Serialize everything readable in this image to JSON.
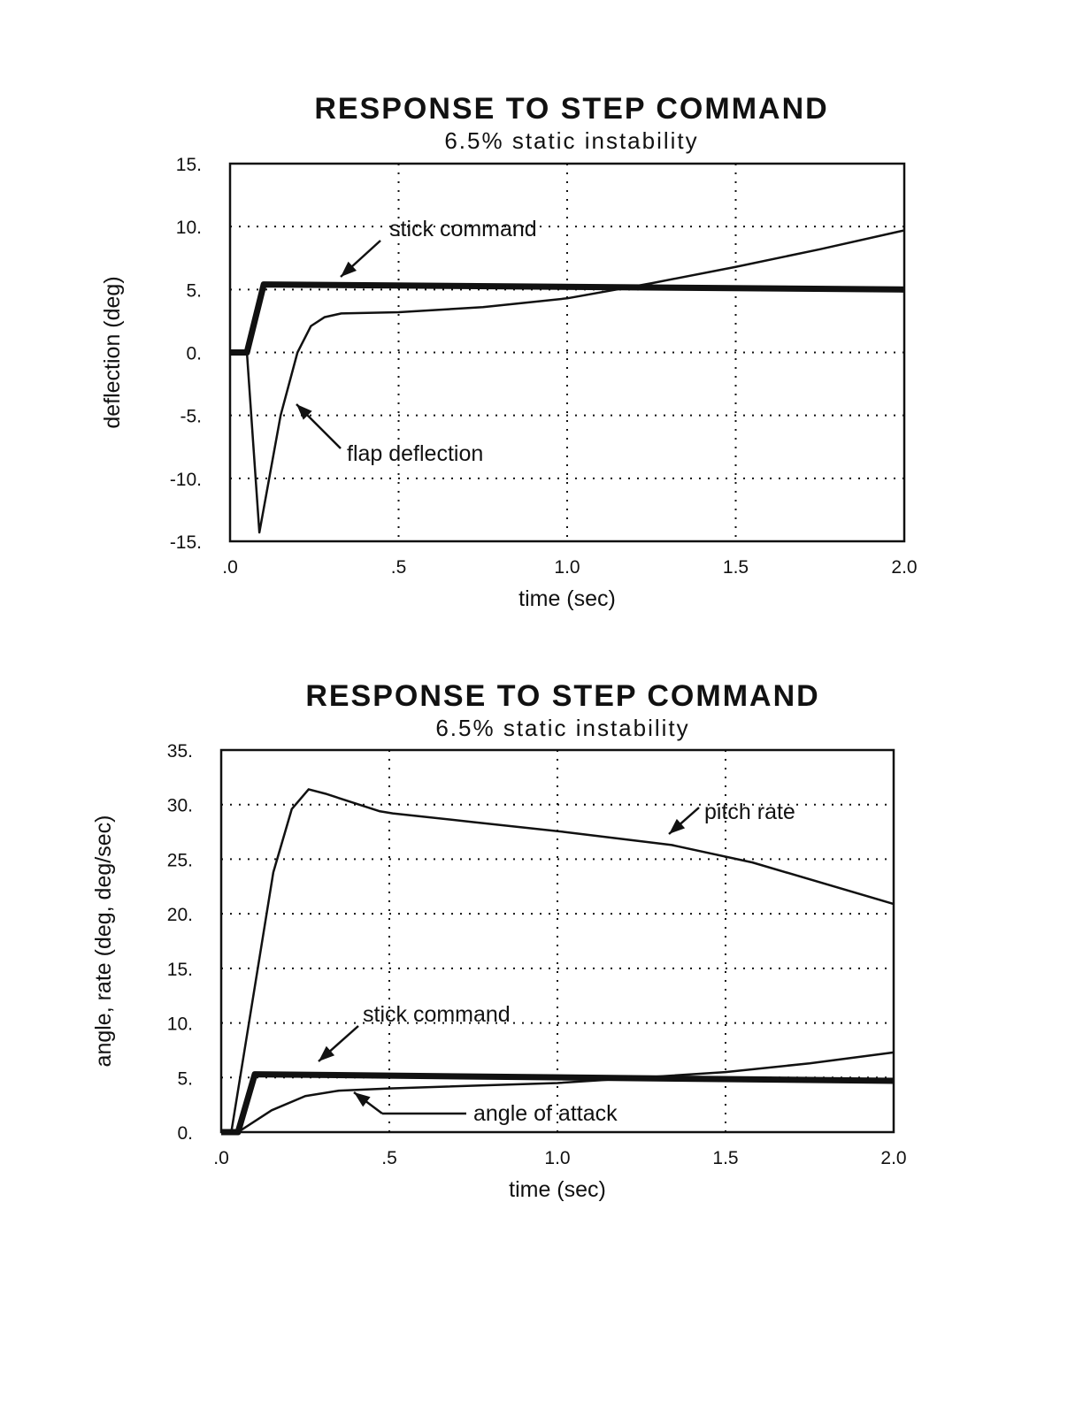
{
  "chart_data": [
    {
      "type": "line",
      "title": "RESPONSE TO STEP COMMAND",
      "subtitle": "6.5%  static  instability",
      "xlabel": "time (sec)",
      "ylabel": "deflection (deg)",
      "xlim": [
        0,
        2.0
      ],
      "ylim": [
        -15,
        15
      ],
      "xticks": [
        0,
        0.5,
        1.0,
        1.5,
        2.0
      ],
      "xtick_labels": [
        ".0",
        ".5",
        "1.0",
        "1.5",
        "2.0"
      ],
      "yticks": [
        15,
        10,
        5,
        0,
        -5,
        -10,
        -15
      ],
      "ytick_labels": [
        "15.",
        "10.",
        "5.",
        "0.",
        "-5.",
        "-10.",
        "-15."
      ],
      "grid": true,
      "series": [
        {
          "name": "stick command",
          "style": "thick",
          "x": [
            0,
            0.05,
            0.1,
            2.0
          ],
          "y": [
            0,
            0,
            5.4,
            5.0
          ]
        },
        {
          "name": "flap deflection",
          "style": "thin",
          "x": [
            0.05,
            0.087,
            0.15,
            0.2,
            0.24,
            0.28,
            0.33,
            0.5,
            0.75,
            1.0,
            1.25,
            1.5,
            1.75,
            2.0
          ],
          "y": [
            0,
            -14.3,
            -5,
            0,
            2.1,
            2.8,
            3.1,
            3.2,
            3.6,
            4.3,
            5.5,
            6.8,
            8.2,
            9.7
          ]
        }
      ],
      "annotations": [
        "stick command",
        "flap deflection"
      ]
    },
    {
      "type": "line",
      "title": "RESPONSE TO STEP COMMAND",
      "subtitle": "6.5%  static  instability",
      "xlabel": "time (sec)",
      "ylabel": "angle, rate (deg, deg/sec)",
      "xlim": [
        0,
        2.0
      ],
      "ylim": [
        0,
        35
      ],
      "xticks": [
        0,
        0.5,
        1.0,
        1.5,
        2.0
      ],
      "xtick_labels": [
        ".0",
        ".5",
        "1.0",
        "1.5",
        "2.0"
      ],
      "yticks": [
        35,
        30,
        25,
        20,
        15,
        10,
        5,
        0
      ],
      "ytick_labels": [
        "35.",
        "30.",
        "25.",
        "20.",
        "15.",
        "10.",
        "5.",
        "0."
      ],
      "grid": true,
      "series": [
        {
          "name": "stick command",
          "style": "thick",
          "x": [
            0,
            0.05,
            0.1,
            2.0
          ],
          "y": [
            0,
            0,
            5.3,
            4.7
          ]
        },
        {
          "name": "pitch rate",
          "style": "thin",
          "x": [
            0.03,
            0.155,
            0.21,
            0.26,
            0.31,
            0.47,
            0.51,
            0.75,
            1.02,
            1.34,
            1.58,
            2.0
          ],
          "y": [
            0,
            23.8,
            29.6,
            31.4,
            31.0,
            29.4,
            29.2,
            28.4,
            27.5,
            26.3,
            24.7,
            20.9
          ]
        },
        {
          "name": "angle of attack",
          "style": "thin",
          "x": [
            0.05,
            0.15,
            0.25,
            0.35,
            0.5,
            1.0,
            1.5,
            1.75,
            2.0
          ],
          "y": [
            0,
            2.0,
            3.3,
            3.8,
            4.0,
            4.5,
            5.5,
            6.3,
            7.3
          ]
        }
      ],
      "annotations": [
        "stick command",
        "pitch rate",
        "angle of attack"
      ]
    }
  ]
}
